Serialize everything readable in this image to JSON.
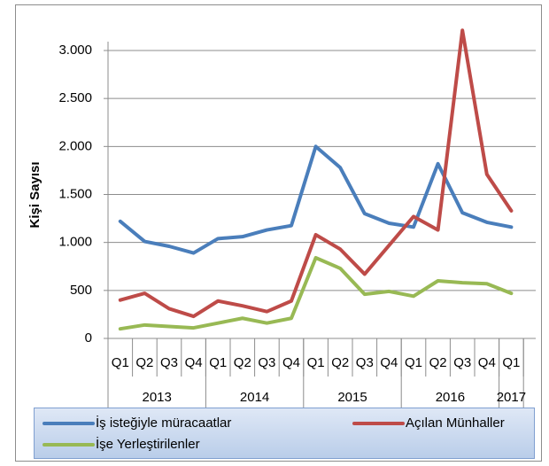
{
  "chart_data": {
    "type": "line",
    "y_label": "Kişi Sayısı",
    "groups": [
      {
        "name": "2013",
        "categories": [
          "Q1",
          "Q2",
          "Q3",
          "Q4"
        ]
      },
      {
        "name": "2014",
        "categories": [
          "Q1",
          "Q2",
          "Q3",
          "Q4"
        ]
      },
      {
        "name": "2015",
        "categories": [
          "Q1",
          "Q2",
          "Q3",
          "Q4"
        ]
      },
      {
        "name": "2016",
        "categories": [
          "Q1",
          "Q2",
          "Q3",
          "Q4"
        ]
      },
      {
        "name": "2017",
        "categories": [
          "Q1"
        ]
      }
    ],
    "series": [
      {
        "name": "İş isteğiyle müracaatlar",
        "color": "#4a7ebb",
        "values": [
          1220,
          1010,
          960,
          890,
          1040,
          1060,
          1130,
          1175,
          2000,
          1780,
          1300,
          1200,
          1160,
          1820,
          1310,
          1210,
          1160
        ]
      },
      {
        "name": "Açılan Münhaller",
        "color": "#be4b48",
        "values": [
          400,
          470,
          310,
          230,
          390,
          340,
          280,
          390,
          1080,
          930,
          670,
          970,
          1270,
          1130,
          3210,
          1710,
          1330
        ]
      },
      {
        "name": "İşe Yerleştirilenler",
        "color": "#98b954",
        "values": [
          100,
          140,
          125,
          110,
          160,
          210,
          160,
          210,
          840,
          730,
          460,
          490,
          440,
          600,
          580,
          570,
          470
        ]
      }
    ],
    "ylim": [
      0,
      3000
    ],
    "yticks": [
      0,
      500,
      {
        "value": 1000,
        "label": "1.000"
      },
      {
        "value": 1500,
        "label": "1.500"
      },
      {
        "value": 2000,
        "label": "2.000"
      },
      {
        "value": 2500,
        "label": "2.500"
      },
      {
        "value": 3000,
        "label": "3.000"
      }
    ],
    "grid": true
  }
}
